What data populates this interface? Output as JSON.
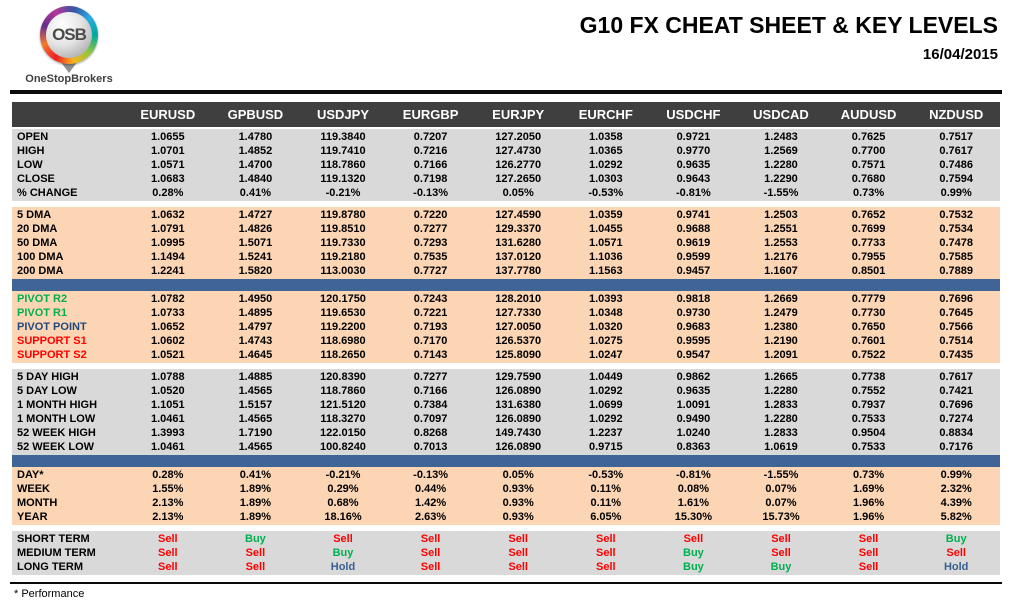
{
  "header": {
    "logo_text": "OSB",
    "logo_subtext": "OneStopBrokers",
    "title": "G10 FX CHEAT SHEET & KEY LEVELS",
    "date": "16/04/2015"
  },
  "table": {
    "columns": [
      "EURUSD",
      "GPBUSD",
      "USDJPY",
      "EURGBP",
      "EURJPY",
      "EURCHF",
      "USDCHF",
      "USDCAD",
      "AUDUSD",
      "NZDUSD"
    ],
    "sections": [
      {
        "kind": "rows",
        "name": "ohlc",
        "bg": "gray",
        "rows": [
          {
            "label": "OPEN",
            "values": [
              "1.0655",
              "1.4780",
              "119.3840",
              "0.7207",
              "127.2050",
              "1.0358",
              "0.9721",
              "1.2483",
              "0.7625",
              "0.7517"
            ]
          },
          {
            "label": "HIGH",
            "values": [
              "1.0701",
              "1.4852",
              "119.7410",
              "0.7216",
              "127.4730",
              "1.0365",
              "0.9770",
              "1.2569",
              "0.7700",
              "0.7617"
            ]
          },
          {
            "label": "LOW",
            "values": [
              "1.0571",
              "1.4700",
              "118.7860",
              "0.7166",
              "126.2770",
              "1.0292",
              "0.9635",
              "1.2280",
              "0.7571",
              "0.7486"
            ]
          },
          {
            "label": "CLOSE",
            "values": [
              "1.0683",
              "1.4840",
              "119.1320",
              "0.7198",
              "127.2650",
              "1.0303",
              "0.9643",
              "1.2290",
              "0.7680",
              "0.7594"
            ]
          },
          {
            "label": "% CHANGE",
            "values": [
              "0.28%",
              "0.41%",
              "-0.21%",
              "-0.13%",
              "0.05%",
              "-0.53%",
              "-0.81%",
              "-1.55%",
              "0.73%",
              "0.99%"
            ]
          }
        ]
      },
      {
        "kind": "gap"
      },
      {
        "kind": "rows",
        "name": "moving-averages",
        "bg": "peach",
        "rows": [
          {
            "label": "5 DMA",
            "values": [
              "1.0632",
              "1.4727",
              "119.8780",
              "0.7220",
              "127.4590",
              "1.0359",
              "0.9741",
              "1.2503",
              "0.7652",
              "0.7532"
            ]
          },
          {
            "label": "20 DMA",
            "values": [
              "1.0791",
              "1.4826",
              "119.8510",
              "0.7277",
              "129.3370",
              "1.0455",
              "0.9688",
              "1.2551",
              "0.7699",
              "0.7534"
            ]
          },
          {
            "label": "50 DMA",
            "values": [
              "1.0995",
              "1.5071",
              "119.7330",
              "0.7293",
              "131.6280",
              "1.0571",
              "0.9619",
              "1.2553",
              "0.7733",
              "0.7478"
            ]
          },
          {
            "label": "100 DMA",
            "values": [
              "1.1494",
              "1.5241",
              "119.2180",
              "0.7535",
              "137.0120",
              "1.1036",
              "0.9599",
              "1.2176",
              "0.7955",
              "0.7585"
            ]
          },
          {
            "label": "200 DMA",
            "values": [
              "1.2241",
              "1.5820",
              "113.0030",
              "0.7727",
              "137.7780",
              "1.1563",
              "0.9457",
              "1.1607",
              "0.8501",
              "0.7889"
            ]
          }
        ]
      },
      {
        "kind": "divider"
      },
      {
        "kind": "rows",
        "name": "pivots",
        "bg": "peach",
        "rows": [
          {
            "label": "PIVOT R2",
            "lc": "green",
            "values": [
              "1.0782",
              "1.4950",
              "120.1750",
              "0.7243",
              "128.2010",
              "1.0393",
              "0.9818",
              "1.2669",
              "0.7779",
              "0.7696"
            ]
          },
          {
            "label": "PIVOT R1",
            "lc": "green",
            "values": [
              "1.0733",
              "1.4895",
              "119.6530",
              "0.7221",
              "127.7330",
              "1.0348",
              "0.9730",
              "1.2479",
              "0.7730",
              "0.7645"
            ]
          },
          {
            "label": "PIVOT POINT",
            "lc": "navy",
            "values": [
              "1.0652",
              "1.4797",
              "119.2200",
              "0.7193",
              "127.0050",
              "1.0320",
              "0.9683",
              "1.2380",
              "0.7650",
              "0.7566"
            ]
          },
          {
            "label": "SUPPORT S1",
            "lc": "red",
            "values": [
              "1.0602",
              "1.4743",
              "118.6980",
              "0.7170",
              "126.5370",
              "1.0275",
              "0.9595",
              "1.2190",
              "0.7601",
              "0.7514"
            ]
          },
          {
            "label": "SUPPORT S2",
            "lc": "red",
            "values": [
              "1.0521",
              "1.4645",
              "118.2650",
              "0.7143",
              "125.8090",
              "1.0247",
              "0.9547",
              "1.2091",
              "0.7522",
              "0.7435"
            ]
          }
        ]
      },
      {
        "kind": "gap"
      },
      {
        "kind": "rows",
        "name": "ranges",
        "bg": "gray",
        "rows": [
          {
            "label": "5 DAY HIGH",
            "values": [
              "1.0788",
              "1.4885",
              "120.8390",
              "0.7277",
              "129.7590",
              "1.0449",
              "0.9862",
              "1.2665",
              "0.7738",
              "0.7617"
            ]
          },
          {
            "label": "5 DAY LOW",
            "values": [
              "1.0520",
              "1.4565",
              "118.7860",
              "0.7166",
              "126.0890",
              "1.0292",
              "0.9635",
              "1.2280",
              "0.7552",
              "0.7421"
            ]
          },
          {
            "label": "1 MONTH HIGH",
            "values": [
              "1.1051",
              "1.5157",
              "121.5120",
              "0.7384",
              "131.6380",
              "1.0699",
              "1.0091",
              "1.2833",
              "0.7937",
              "0.7696"
            ]
          },
          {
            "label": "1 MONTH LOW",
            "values": [
              "1.0461",
              "1.4565",
              "118.3270",
              "0.7097",
              "126.0890",
              "1.0292",
              "0.9490",
              "1.2280",
              "0.7533",
              "0.7274"
            ]
          },
          {
            "label": "52 WEEK HIGH",
            "values": [
              "1.3993",
              "1.7190",
              "122.0150",
              "0.8268",
              "149.7430",
              "1.2237",
              "1.0240",
              "1.2833",
              "0.9504",
              "0.8834"
            ]
          },
          {
            "label": "52 WEEK LOW",
            "values": [
              "1.0461",
              "1.4565",
              "100.8240",
              "0.7013",
              "126.0890",
              "0.9715",
              "0.8363",
              "1.0619",
              "0.7533",
              "0.7176"
            ]
          }
        ]
      },
      {
        "kind": "divider"
      },
      {
        "kind": "rows",
        "name": "performance",
        "bg": "peach",
        "rows": [
          {
            "label": "DAY*",
            "values": [
              "0.28%",
              "0.41%",
              "-0.21%",
              "-0.13%",
              "0.05%",
              "-0.53%",
              "-0.81%",
              "-1.55%",
              "0.73%",
              "0.99%"
            ]
          },
          {
            "label": "WEEK",
            "values": [
              "1.55%",
              "1.89%",
              "0.29%",
              "0.44%",
              "0.93%",
              "0.11%",
              "0.08%",
              "0.07%",
              "1.69%",
              "2.32%"
            ]
          },
          {
            "label": "MONTH",
            "values": [
              "2.13%",
              "1.89%",
              "0.68%",
              "1.42%",
              "0.93%",
              "0.11%",
              "1.61%",
              "0.07%",
              "1.96%",
              "4.39%"
            ]
          },
          {
            "label": "YEAR",
            "values": [
              "2.13%",
              "1.89%",
              "18.16%",
              "2.63%",
              "0.93%",
              "6.05%",
              "15.30%",
              "15.73%",
              "1.96%",
              "5.82%"
            ]
          }
        ]
      },
      {
        "kind": "gap"
      },
      {
        "kind": "rows",
        "name": "signals",
        "bg": "gray",
        "signals": true,
        "rows": [
          {
            "label": "SHORT TERM",
            "values": [
              "Sell",
              "Buy",
              "Sell",
              "Sell",
              "Sell",
              "Sell",
              "Sell",
              "Sell",
              "Sell",
              "Buy"
            ]
          },
          {
            "label": "MEDIUM TERM",
            "values": [
              "Sell",
              "Sell",
              "Buy",
              "Sell",
              "Sell",
              "Sell",
              "Buy",
              "Sell",
              "Sell",
              "Sell"
            ]
          },
          {
            "label": "LONG TERM",
            "values": [
              "Sell",
              "Sell",
              "Hold",
              "Sell",
              "Sell",
              "Sell",
              "Buy",
              "Buy",
              "Sell",
              "Hold"
            ]
          }
        ]
      }
    ]
  },
  "footer": {
    "note": "* Performance"
  },
  "colors": {
    "header_band": "#3F3F3F",
    "section_gray": "#D9D9D9",
    "section_peach": "#FCD5B4",
    "divider_blue": "#3E6596",
    "buy_green": "#00B050",
    "sell_red": "#FF0000",
    "hold_blue": "#376091",
    "pivot_navy": "#1F497D"
  }
}
